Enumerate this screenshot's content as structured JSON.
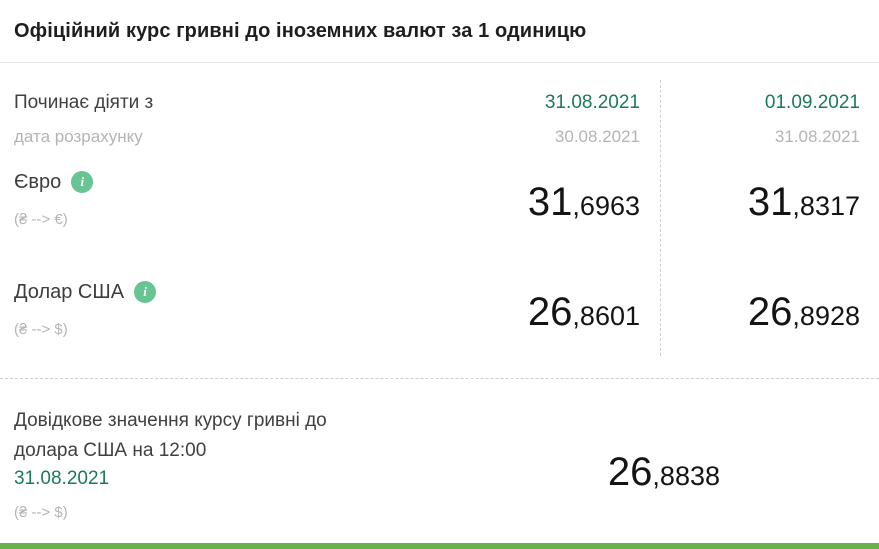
{
  "title": "Офіційний курс гривні до іноземних валют за 1 одиницю",
  "header": {
    "effective_label": "Починає діяти з",
    "calculation_label": "дата розрахунку",
    "columns": [
      {
        "effective_date": "31.08.2021",
        "calculation_date": "30.08.2021"
      },
      {
        "effective_date": "01.09.2021",
        "calculation_date": "31.08.2021"
      }
    ]
  },
  "rates": [
    {
      "name": "Євро",
      "conversion": "(₴ --> €)",
      "info_icon": "i",
      "values": [
        {
          "int": "31",
          "dec": ",6963"
        },
        {
          "int": "31",
          "dec": ",8317"
        }
      ]
    },
    {
      "name": "Долар США",
      "conversion": "(₴ --> $)",
      "info_icon": "i",
      "values": [
        {
          "int": "26",
          "dec": ",8601"
        },
        {
          "int": "26",
          "dec": ",8928"
        }
      ]
    }
  ],
  "reference": {
    "label": "Довідкове значення курсу гривні до долара США на 12:00",
    "date": "31.08.2021",
    "conversion": "(₴ --> $)",
    "value": {
      "int": "26",
      "dec": ",8838"
    }
  },
  "colors": {
    "accent_green": "#1a7a5c",
    "icon_green": "#67c493",
    "bar_green": "#6ab04c",
    "text_light": "#b4b4b4",
    "divider": "#cfcfcf"
  }
}
